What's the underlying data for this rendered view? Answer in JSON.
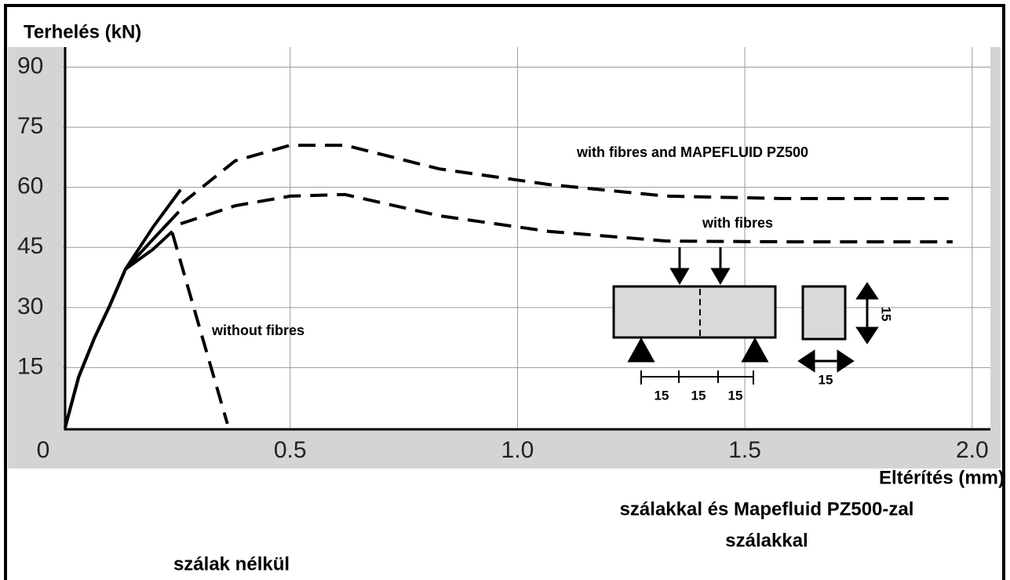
{
  "chart_data": {
    "type": "line",
    "title": "Terhelés (kN)",
    "x_label": "Eltérítés (mm)",
    "xlim": [
      0,
      2.04
    ],
    "ylim": [
      0,
      95
    ],
    "xticks": [
      0,
      0.5,
      {
        "value": 1,
        "label": "1.0"
      },
      1.5,
      {
        "value": 2,
        "label": "2.0"
      }
    ],
    "yticks": [
      15,
      30,
      45,
      60,
      75,
      90
    ],
    "grid": true,
    "color": "#000000",
    "series": [
      {
        "name": "with fibres and MAPEFLUID PZ500",
        "segments": [
          {
            "style": "solid",
            "x": [
              0.005,
              0.035,
              0.07,
              0.103,
              0.138,
              0.198,
              0.259
            ],
            "values": [
              0,
              12.7,
              22.5,
              30.4,
              39.6,
              50,
              59.4
            ]
          },
          {
            "style": "dashed",
            "x": [
              0.262,
              0.379,
              0.5,
              0.621,
              0.828,
              1.069,
              1.328,
              1.586,
              1.948
            ],
            "values": [
              56,
              66.6,
              70.5,
              70.5,
              64.6,
              60.7,
              57.8,
              57.2,
              57.2
            ]
          }
        ]
      },
      {
        "name": "with fibres",
        "segments": [
          {
            "style": "solid",
            "x": [
              0.005,
              0.035,
              0.07,
              0.103,
              0.138,
              0.198,
              0.255
            ],
            "values": [
              0,
              12.7,
              22.5,
              30.4,
              39.6,
              47,
              53.9
            ]
          },
          {
            "style": "dashed",
            "x": [
              0.259,
              0.379,
              0.5,
              0.621,
              0.828,
              1.069,
              1.328,
              1.586,
              1.957
            ],
            "values": [
              50.9,
              55.4,
              57.8,
              58.2,
              52.9,
              49,
              46.6,
              46.4,
              46.4
            ]
          }
        ]
      },
      {
        "name": "without fibres",
        "segments": [
          {
            "style": "solid",
            "x": [
              0.005,
              0.035,
              0.07,
              0.103,
              0.138,
              0.198,
              0.241
            ],
            "values": [
              0,
              12.7,
              22.5,
              30.4,
              39.6,
              44.5,
              49
            ]
          },
          {
            "style": "dashed",
            "x": [
              0.241,
              0.302,
              0.362
            ],
            "values": [
              48.6,
              24.5,
              1
            ]
          }
        ]
      }
    ],
    "notes": [
      "szálakkal és Mapefluid PZ500-zal",
      "szálakkal",
      "szálak nélkül"
    ],
    "inset_labels": [
      "15",
      "15",
      "15",
      "15",
      "15"
    ]
  }
}
